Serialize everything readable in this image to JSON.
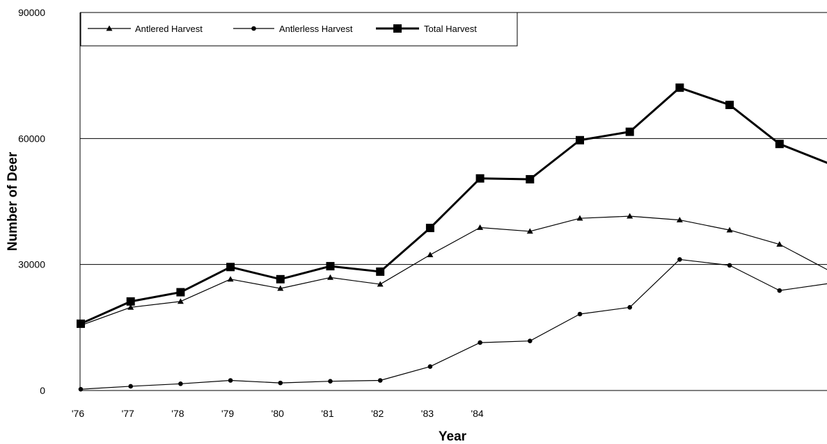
{
  "chart_data": {
    "type": "line",
    "title": "",
    "xlabel": "Year",
    "ylabel": "Number of Deer",
    "ylim": [
      0,
      90000
    ],
    "yticks": [
      "0",
      "30000",
      "60000",
      "90000"
    ],
    "ytick_values": [
      0,
      30000,
      60000,
      90000
    ],
    "x_tick_labels": [
      "'76",
      "'77",
      "'78",
      "'79",
      "'80",
      "'81",
      "'82",
      "'83",
      "'84"
    ],
    "grid": "horizontal",
    "legend_position": "top-left",
    "colors": {
      "lines": "#000000",
      "background": "#ffffff"
    },
    "series": [
      {
        "name": "Antlered Harvest",
        "marker": "triangle",
        "line": "thin",
        "values": [
          15500,
          19800,
          21200,
          26500,
          24300,
          26900,
          25300,
          32300,
          38800,
          37900,
          41000,
          41500,
          40600,
          38200,
          34800,
          28500
        ]
      },
      {
        "name": "Antlerless Harvest",
        "marker": "circle",
        "line": "thin",
        "values": [
          300,
          1000,
          1600,
          2400,
          1800,
          2200,
          2400,
          5700,
          11400,
          11800,
          18200,
          19800,
          31200,
          29800,
          23800,
          25500
        ]
      },
      {
        "name": "Total Harvest",
        "marker": "square",
        "line": "thick",
        "values": [
          15900,
          21200,
          23400,
          29400,
          26500,
          29600,
          28300,
          38700,
          50500,
          50300,
          59600,
          61600,
          72100,
          68000,
          58700,
          54000
        ]
      }
    ]
  }
}
